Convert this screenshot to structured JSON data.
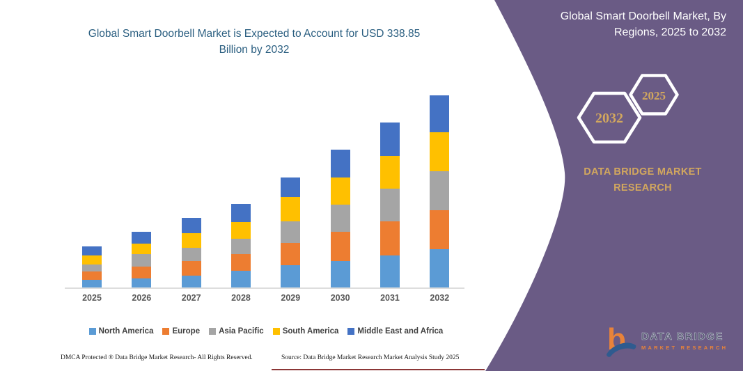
{
  "chart": {
    "title": "Global Smart Doorbell Market is Expected to Account for USD 338.85 Billion by 2032"
  },
  "chart_data": {
    "type": "bar",
    "stacked": true,
    "title": "Global Smart Doorbell Market is Expected to Account for USD 338.85 Billion by 2032",
    "unit": "USD Billion",
    "categories": [
      "2025",
      "2026",
      "2027",
      "2028",
      "2029",
      "2030",
      "2031",
      "2032"
    ],
    "series": [
      {
        "name": "North America",
        "color": "#5B9BD5",
        "values": [
          13.5,
          16.4,
          20.5,
          29.5,
          38.9,
          46.3,
          56.9,
          68.0
        ]
      },
      {
        "name": "Europe",
        "color": "#ED7D31",
        "values": [
          15.1,
          20.5,
          25.8,
          29.9,
          39.3,
          52.4,
          60.2,
          68.4
        ]
      },
      {
        "name": "Asia Pacific",
        "color": "#A5A5A5",
        "values": [
          11.4,
          21.7,
          23.3,
          26.6,
          38.9,
          47.9,
          57.4,
          68.9
        ]
      },
      {
        "name": "South America",
        "color": "#FFC000",
        "values": [
          16.3,
          19.3,
          26.6,
          29.5,
          43.0,
          47.9,
          57.4,
          68.6
        ]
      },
      {
        "name": "Middle East and Africa",
        "color": "#4472C4",
        "values": [
          16.0,
          20.4,
          26.6,
          31.9,
          33.5,
          49.1,
          59.6,
          64.95
        ]
      }
    ],
    "totals": [
      72.3,
      98.3,
      122.8,
      147.4,
      193.6,
      243.6,
      291.5,
      338.85
    ],
    "ylim": [
      0,
      340
    ],
    "grid": false,
    "axis_labels_visible": false,
    "legend_position": "bottom",
    "xlabel": "",
    "ylabel": ""
  },
  "sidebar": {
    "heading_line1": "Global Smart Doorbell Market, By",
    "heading_line2": "Regions, 2025 to 2032",
    "hexagons": [
      {
        "label": "2032"
      },
      {
        "label": "2025"
      }
    ],
    "brand": "DATA BRIDGE MARKET RESEARCH",
    "logo": {
      "name": "DATA BRIDGE",
      "sub": "MARKET RESEARCH"
    },
    "accent_color": "#D2A75E",
    "panel_color": "#6A5B85"
  },
  "footer": {
    "left": "DMCA Protected ® Data Bridge Market Research-  All Rights Reserved.",
    "right": "Source: Data Bridge Market Research  Market Analysis Study 2025"
  }
}
